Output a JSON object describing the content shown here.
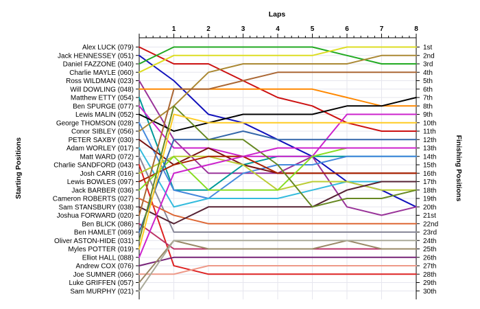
{
  "chart_data": {
    "type": "line",
    "title": "Laps",
    "ylabel_left": "Starting Positions",
    "ylabel_right": "Finishing Positions",
    "x": [
      0,
      1,
      2,
      3,
      4,
      5,
      6,
      7,
      8
    ],
    "x_tick_labels": [
      "1",
      "2",
      "3",
      "4",
      "5",
      "6",
      "7",
      "8"
    ],
    "y_range": [
      1,
      30
    ],
    "y_inverted": true,
    "grid": true,
    "start_labels": [
      "Alex LUCK (079)",
      "Jack HENNESSEY (051)",
      "Daniel FAZZONE (040)",
      "Charlie MAYLE (060)",
      "Ross WILDMAN (023)",
      "Will DOWLING (048)",
      "Matthew ETTY (054)",
      "Ben SPURGE (077)",
      "Lewis MALIN (052)",
      "George THOMSON (028)",
      "Conor SIBLEY (056)",
      "PETER SAXBY (030)",
      "Adam WORLEY (017)",
      "Matt WARD (072)",
      "Charlie SANDFORD (043)",
      "Josh CARR (016)",
      "Lewis BOWLES (097)",
      "Jack BARBER (036)",
      "Cameron ROBERTS (027)",
      "Sam STANSBURY (038)",
      "Joshua FORWARD (020)",
      "Ben BLICK (086)",
      "Ben HAMLET (069)",
      "Oliver ASTON-HIDE (031)",
      "Myles POTTER (019)",
      "Elliot HALL (088)",
      "Andrew COX (076)",
      "Joe SUMNER (066)",
      "Luke GRIFFEN (057)",
      "Sam MURPHY (021)"
    ],
    "finish_labels": [
      "1st",
      "2nd",
      "3rd",
      "4th",
      "5th",
      "6th",
      "7th",
      "8th",
      "9th",
      "10th",
      "11th",
      "12th",
      "13th",
      "14th",
      "15th",
      "16th",
      "17th",
      "18th",
      "19th",
      "20th",
      "21st",
      "22nd",
      "23rd",
      "24th",
      "25th",
      "26th",
      "27th",
      "28th",
      "29th",
      "30th"
    ],
    "series": [
      {
        "color": "#cc1111",
        "positions": [
          1,
          3,
          3,
          5,
          7,
          8,
          10,
          11,
          11
        ]
      },
      {
        "color": "#1111bb",
        "positions": [
          2,
          5,
          9,
          10,
          12,
          14,
          17,
          18,
          20
        ]
      },
      {
        "color": "#22aa22",
        "positions": [
          3,
          1,
          1,
          1,
          1,
          1,
          2,
          3,
          3
        ]
      },
      {
        "color": "#dddd22",
        "positions": [
          4,
          2,
          2,
          2,
          2,
          2,
          1,
          1,
          1
        ]
      },
      {
        "color": "#993399",
        "positions": [
          5,
          12,
          16,
          16,
          16,
          14,
          20,
          21,
          20
        ]
      },
      {
        "color": "#ff8800",
        "positions": [
          6,
          6,
          6,
          6,
          6,
          6,
          7,
          8,
          8
        ]
      },
      {
        "color": "#009999",
        "positions": [
          7,
          18,
          18,
          15,
          14,
          14,
          14,
          14,
          14
        ]
      },
      {
        "color": "#cc22cc",
        "positions": [
          8,
          13,
          13,
          14,
          14,
          14,
          9,
          9,
          9
        ]
      },
      {
        "color": "#000000",
        "positions": [
          9,
          11,
          10,
          9,
          9,
          9,
          8,
          8,
          7
        ]
      },
      {
        "color": "#4488dd",
        "positions": [
          10,
          18,
          19,
          16,
          15,
          15,
          14,
          14,
          14
        ]
      },
      {
        "color": "#aa8833",
        "positions": [
          11,
          8,
          4,
          3,
          3,
          3,
          3,
          2,
          2
        ]
      },
      {
        "color": "#771111",
        "positions": [
          12,
          15,
          13,
          15,
          16,
          16,
          16,
          16,
          16
        ]
      },
      {
        "color": "#33bbdd",
        "positions": [
          13,
          20,
          19,
          19,
          19,
          18,
          17,
          17,
          17
        ]
      },
      {
        "color": "#888899",
        "positions": [
          14,
          23,
          23,
          23,
          23,
          23,
          23,
          23,
          23
        ]
      },
      {
        "color": "#dd2222",
        "positions": [
          15,
          27,
          28,
          28,
          28,
          28,
          28,
          28,
          28
        ]
      },
      {
        "color": "#bbcc33",
        "positions": [
          16,
          14,
          14,
          15,
          18,
          17,
          17,
          18,
          18
        ]
      },
      {
        "color": "#aa2200",
        "positions": [
          17,
          15,
          14,
          14,
          16,
          16,
          16,
          16,
          16
        ]
      },
      {
        "color": "#88dd22",
        "positions": [
          18,
          14,
          18,
          18,
          18,
          14,
          13,
          13,
          13
        ]
      },
      {
        "color": "#dd6633",
        "positions": [
          19,
          21,
          22,
          22,
          22,
          22,
          22,
          22,
          22
        ]
      },
      {
        "color": "#552233",
        "positions": [
          20,
          22,
          20,
          20,
          20,
          20,
          18,
          17,
          17
        ]
      },
      {
        "color": "#aa6633",
        "positions": [
          21,
          6,
          6,
          5,
          4,
          4,
          4,
          4,
          4
        ]
      },
      {
        "color": "#bb3366",
        "positions": [
          22,
          25,
          25,
          25,
          25,
          25,
          25,
          25,
          25
        ]
      },
      {
        "color": "#3366aa",
        "positions": [
          23,
          12,
          12,
          11,
          12,
          12,
          12,
          12,
          12
        ]
      },
      {
        "color": "#668822",
        "positions": [
          24,
          8,
          12,
          12,
          15,
          20,
          19,
          19,
          18
        ]
      },
      {
        "color": "#ffcc22",
        "positions": [
          25,
          9,
          10,
          10,
          10,
          10,
          10,
          10,
          10
        ]
      },
      {
        "color": "#cc22cc",
        "positions": [
          26,
          16,
          15,
          14,
          13,
          13,
          13,
          13,
          13
        ]
      },
      {
        "color": "#772277",
        "positions": [
          27,
          26,
          26,
          26,
          26,
          26,
          26,
          26,
          26
        ]
      },
      {
        "color": "#ee9988",
        "positions": [
          28,
          28,
          27,
          27,
          27,
          27,
          27,
          27,
          27
        ]
      },
      {
        "color": "#998866",
        "positions": [
          29,
          24,
          25,
          25,
          25,
          25,
          24,
          25,
          25
        ]
      },
      {
        "color": "#aaaa99",
        "positions": [
          30,
          24,
          24,
          24,
          24,
          24,
          24,
          24,
          24
        ]
      }
    ]
  }
}
